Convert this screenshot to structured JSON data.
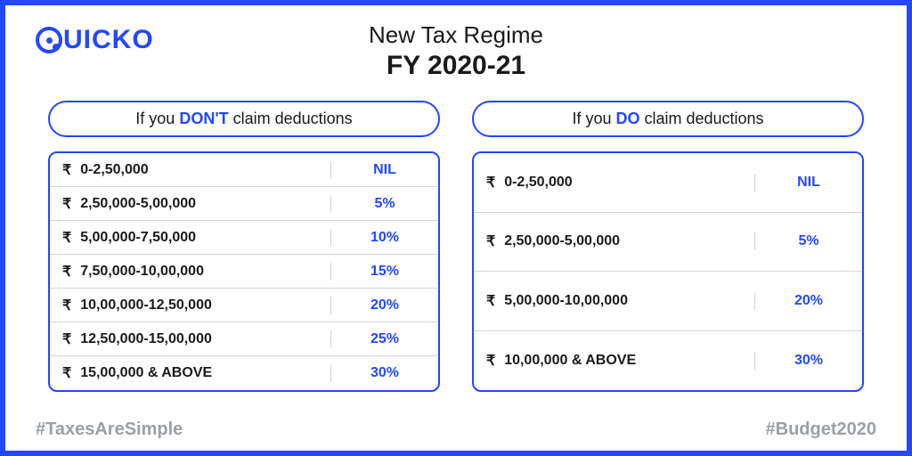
{
  "logo_text": "UICKO",
  "title_line1": "New Tax Regime",
  "title_line2": "FY 2020-21",
  "left": {
    "pill_prefix": "If you ",
    "pill_emph": "DON'T",
    "pill_suffix": " claim deductions",
    "rows": [
      {
        "range": "0-2,50,000",
        "rate": "NIL"
      },
      {
        "range": "2,50,000-5,00,000",
        "rate": "5%"
      },
      {
        "range": "5,00,000-7,50,000",
        "rate": "10%"
      },
      {
        "range": "7,50,000-10,00,000",
        "rate": "15%"
      },
      {
        "range": "10,00,000-12,50,000",
        "rate": "20%"
      },
      {
        "range": "12,50,000-15,00,000",
        "rate": "25%"
      },
      {
        "range": "15,00,000 & ABOVE",
        "rate": "30%"
      }
    ]
  },
  "right": {
    "pill_prefix": "If you ",
    "pill_emph": "DO",
    "pill_suffix": " claim deductions",
    "rows": [
      {
        "range": "0-2,50,000",
        "rate": "NIL"
      },
      {
        "range": "2,50,000-5,00,000",
        "rate": "5%"
      },
      {
        "range": "5,00,000-10,00,000",
        "rate": "20%"
      },
      {
        "range": "10,00,000 & ABOVE",
        "rate": "30%"
      }
    ]
  },
  "hashtag_left": "#TaxesAreSimple",
  "hashtag_right": "#Budget2020",
  "rupee_symbol": "₹",
  "colors": {
    "brand": "#2447ff",
    "text": "#1a1a1a",
    "muted": "#9aa0a6",
    "divider": "#d6d6d6",
    "background": "#ffffff"
  }
}
